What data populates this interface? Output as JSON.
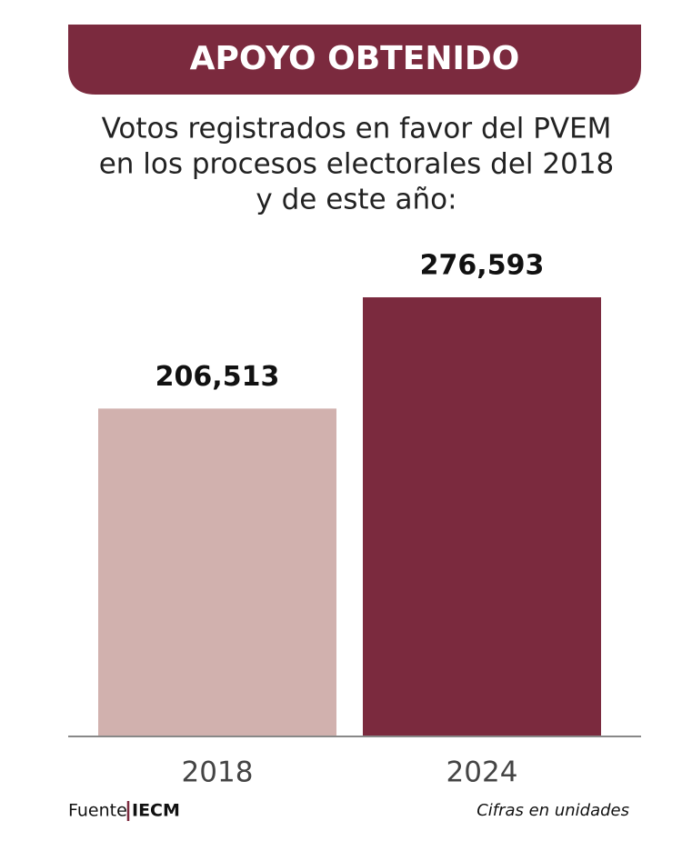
{
  "chart_data": {
    "type": "bar",
    "title": "APOYO OBTENIDO",
    "subtitle": [
      "Votos registrados en favor del PVEM",
      "en los procesos electorales del 2018",
      "y de este año:"
    ],
    "categories": [
      "2018",
      "2024"
    ],
    "values": [
      206513,
      276593
    ],
    "value_labels": [
      "206,513",
      "276,593"
    ],
    "colors": [
      "#d1b1ae",
      "#7b2a3e"
    ],
    "source_label": "Fuente",
    "source": "IECM",
    "note": "Cifras en unidades"
  }
}
